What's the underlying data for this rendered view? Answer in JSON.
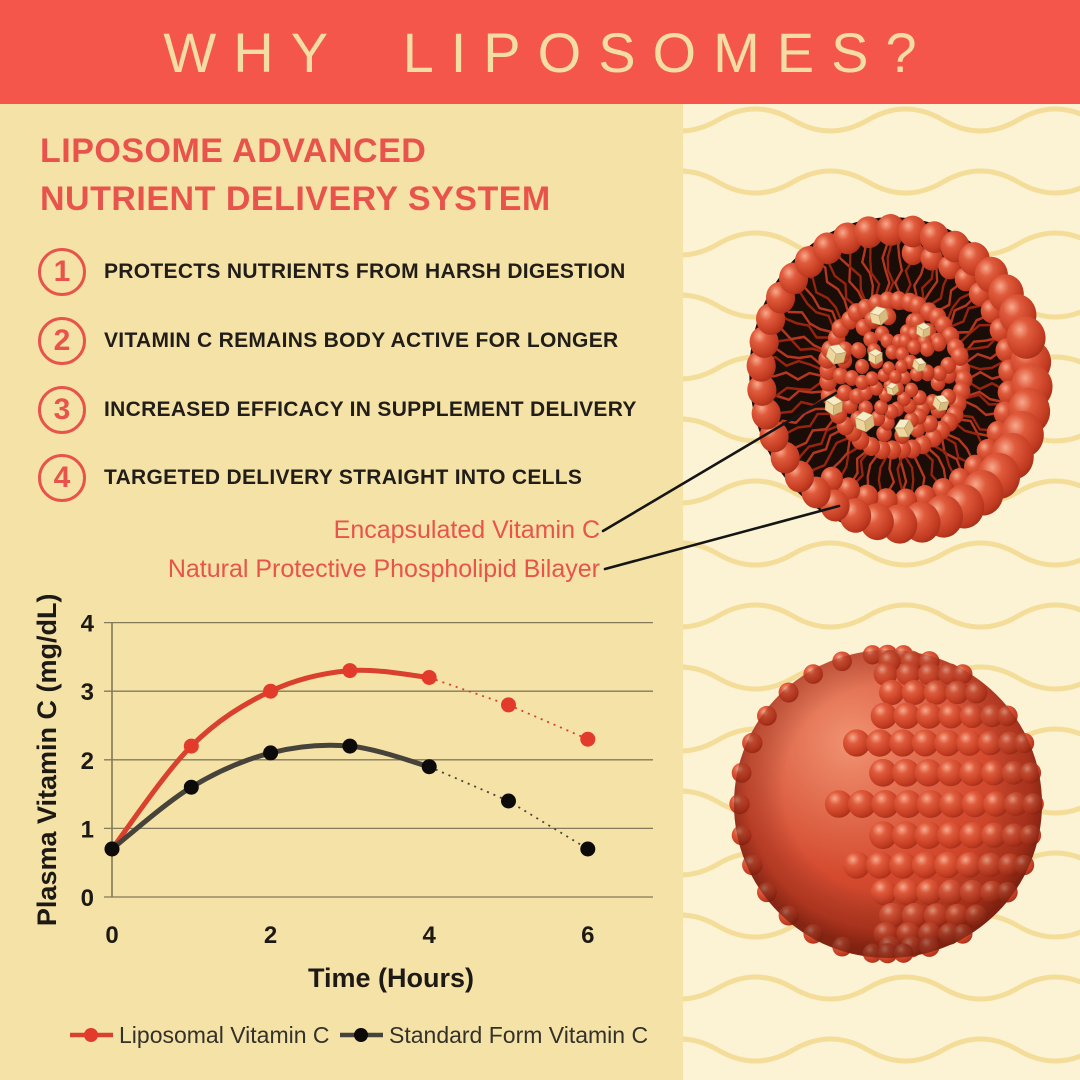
{
  "header": {
    "title": "WHY LIPOSOMES?"
  },
  "intro": {
    "title_line1": "LIPOSOME ADVANCED",
    "title_line2": "NUTRIENT DELIVERY SYSTEM"
  },
  "benefits": [
    {
      "num": "1",
      "text": "PROTECTS NUTRIENTS FROM HARSH DIGESTION"
    },
    {
      "num": "2",
      "text": "VITAMIN C REMAINS BODY ACTIVE FOR LONGER"
    },
    {
      "num": "3",
      "text": "INCREASED EFFICACY IN SUPPLEMENT DELIVERY"
    },
    {
      "num": "4",
      "text": "TARGETED DELIVERY STRAIGHT INTO CELLS"
    }
  ],
  "callouts": [
    {
      "label": "Encapsulated Vitamin C"
    },
    {
      "label": "Natural Protective Phospholipid Bilayer"
    }
  ],
  "illustrations": [
    {
      "name": "liposome-cross-section",
      "description": "cut-away liposome showing phospholipid bilayer and encapsulated vitamin C cubes"
    },
    {
      "name": "liposome-sphere",
      "description": "whole liposome sphere of packed phospholipid heads"
    }
  ],
  "chart_data": {
    "type": "line",
    "title": "",
    "xlabel": "Time (Hours)",
    "ylabel": "Plasma Vitamin C (mg/dL)",
    "x": [
      0,
      1,
      2,
      3,
      4,
      5,
      6
    ],
    "xticks": [
      0,
      2,
      4,
      6
    ],
    "yticks": [
      0,
      1,
      2,
      3,
      4
    ],
    "ylim": [
      0,
      4
    ],
    "xlim": [
      0,
      6
    ],
    "grid": true,
    "legend_position": "bottom",
    "series": [
      {
        "name": "Liposomal Vitamin C",
        "color": "#D9402E",
        "marker_color": "#E23B2B",
        "values": [
          0.7,
          2.2,
          3.0,
          3.3,
          3.2,
          2.8,
          2.3
        ],
        "dotted_after_x": 4
      },
      {
        "name": "Standard Form Vitamin C",
        "color": "#45433A",
        "marker_color": "#0D0B0A",
        "values": [
          0.7,
          1.6,
          2.1,
          2.2,
          1.9,
          1.4,
          0.7
        ],
        "dotted_after_x": 4
      }
    ]
  },
  "colors": {
    "banner_bg": "#F4564C",
    "banner_text": "#F3DDA2",
    "left_panel_bg": "#F5E2A6",
    "right_panel_bg": "#FCF3D4",
    "wave_line": "#F3DB96",
    "heading_red": "#E8544C",
    "body_text": "#211E1A",
    "grid_line": "#84795A",
    "callout_line": "#151515",
    "liposome_red": "#C8402C",
    "vitamin_cube_yellow": "#F2E3B2"
  }
}
